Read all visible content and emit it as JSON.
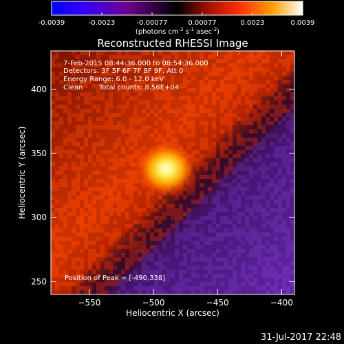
{
  "chart_data": {
    "type": "heatmap",
    "title": "Reconstructed RHESSI Image",
    "xlabel": "Heliocentric X (arcsec)",
    "ylabel": "Heliocentric Y (arcsec)",
    "xlim": [
      -580,
      -390
    ],
    "ylim": [
      240,
      430
    ],
    "x_ticks": [
      -550,
      -500,
      -450,
      -400
    ],
    "y_ticks": [
      250,
      300,
      350,
      400
    ],
    "colorbar": {
      "min": -0.0039,
      "max": 0.0039,
      "ticks": [
        "-0.0039",
        "-0.0023",
        "-0.00077",
        "0.00077",
        "0.0023",
        "0.0039"
      ],
      "label_main": "(photons cm",
      "label_sup1": "-2",
      "label_mid1": " s",
      "label_sup2": "-1",
      "label_mid2": " asec",
      "label_sup3": "-2",
      "label_end": ")",
      "colors": [
        "#0000ff",
        "#6600aa",
        "#000000",
        "#aa1100",
        "#ff3300",
        "#ff9900",
        "#ffffff"
      ]
    },
    "peak": {
      "x": -490,
      "y": 338
    },
    "annotations": [
      "7-Feb-2015 08:44:36.000 to 08:54:36.000",
      "Detectors: 3F 5F 6F 7F 8F 9F, Att 0",
      "Energy Range: 6.0 - 12.0 keV",
      "Clean",
      "Total counts: 8.56E+04"
    ],
    "peak_label": "Position of Peak = [-490,338]"
  },
  "footer": {
    "timestamp": "31-Jul-2017 22:48"
  }
}
